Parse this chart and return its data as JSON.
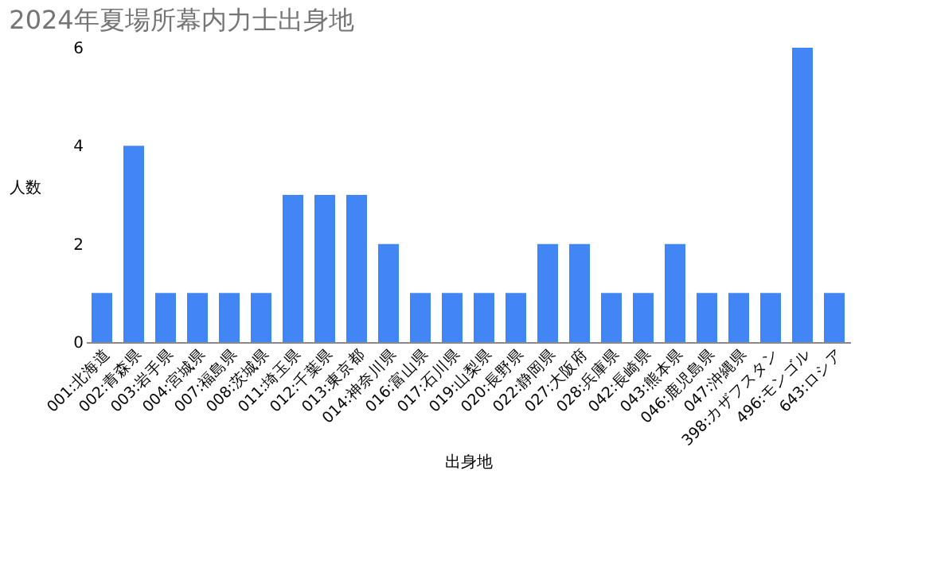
{
  "chart_data": {
    "type": "bar",
    "title": "2024年夏場所幕内力士出身地",
    "xlabel": "出身地",
    "ylabel": "人数",
    "categories": [
      "001:北海道",
      "002:青森県",
      "003:岩手県",
      "004:宮城県",
      "007:福島県",
      "008:茨城県",
      "011:埼玉県",
      "012:千葉県",
      "013:東京都",
      "014:神奈川県",
      "016:富山県",
      "017:石川県",
      "019:山梨県",
      "020:長野県",
      "022:静岡県",
      "027:大阪府",
      "028:兵庫県",
      "042:長崎県",
      "043:熊本県",
      "046:鹿児島県",
      "047:沖縄県",
      "398:カザフスタン",
      "496:モンゴル",
      "643:ロシア"
    ],
    "values": [
      1,
      4,
      1,
      1,
      1,
      1,
      3,
      3,
      3,
      2,
      1,
      1,
      1,
      1,
      2,
      2,
      1,
      1,
      2,
      1,
      1,
      1,
      6,
      1
    ],
    "color": "#4285f4",
    "ylim": [
      0,
      6
    ],
    "yticks": [
      0,
      2,
      4,
      6
    ],
    "grid": false
  }
}
